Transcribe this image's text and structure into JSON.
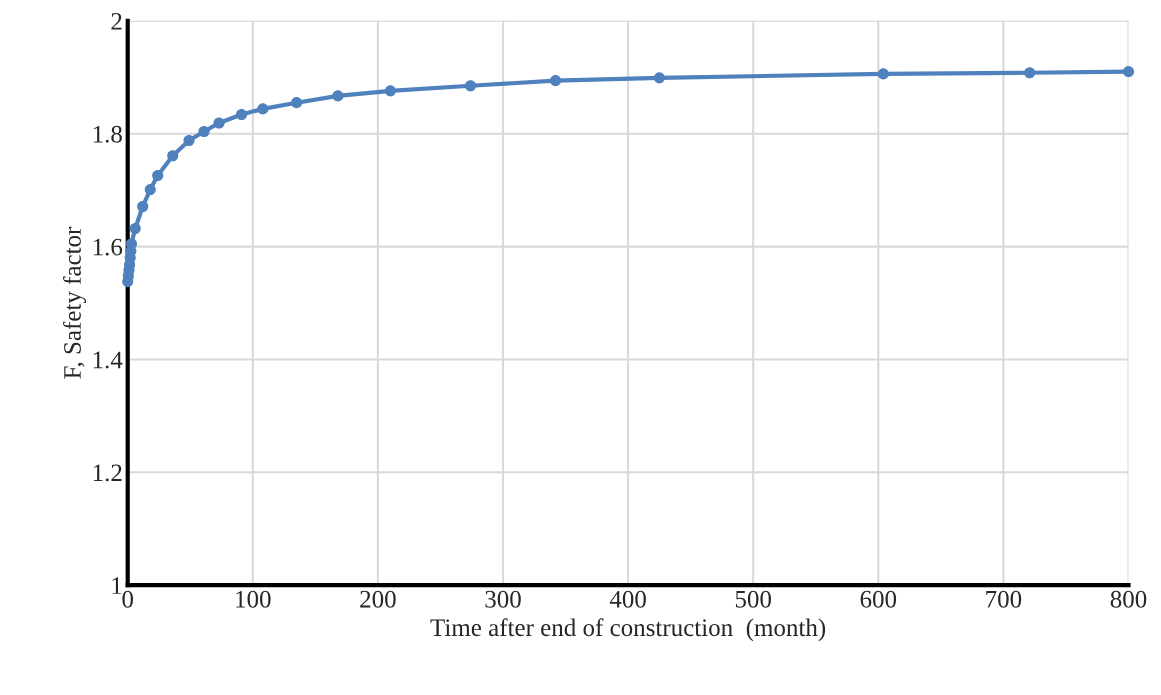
{
  "chart_data": {
    "type": "line",
    "xlabel": "Time after end of construction  (month)",
    "ylabel": "F, Safety factor",
    "x": [
      0,
      0.5,
      1,
      1.5,
      2,
      2.5,
      3,
      6,
      12,
      18,
      24,
      36,
      49,
      61,
      73,
      91,
      108,
      135,
      168,
      210,
      274,
      342,
      425,
      604,
      721,
      800
    ],
    "series": [
      {
        "color": "#4f81bd",
        "values": [
          1.538,
          1.548,
          1.558,
          1.568,
          1.58,
          1.592,
          1.605,
          1.632,
          1.671,
          1.701,
          1.726,
          1.761,
          1.788,
          1.804,
          1.819,
          1.834,
          1.844,
          1.855,
          1.867,
          1.876,
          1.885,
          1.894,
          1.899,
          1.906,
          1.908,
          1.91
        ]
      }
    ],
    "xlim": [
      0,
      800
    ],
    "ylim": [
      1,
      2
    ],
    "xticks": [
      0,
      100,
      200,
      300,
      400,
      500,
      600,
      700,
      800
    ],
    "yticks": [
      1,
      1.2,
      1.4,
      1.6,
      1.8,
      2
    ],
    "grid": true,
    "marker": "circle",
    "line_style": "solid",
    "legend": false
  }
}
